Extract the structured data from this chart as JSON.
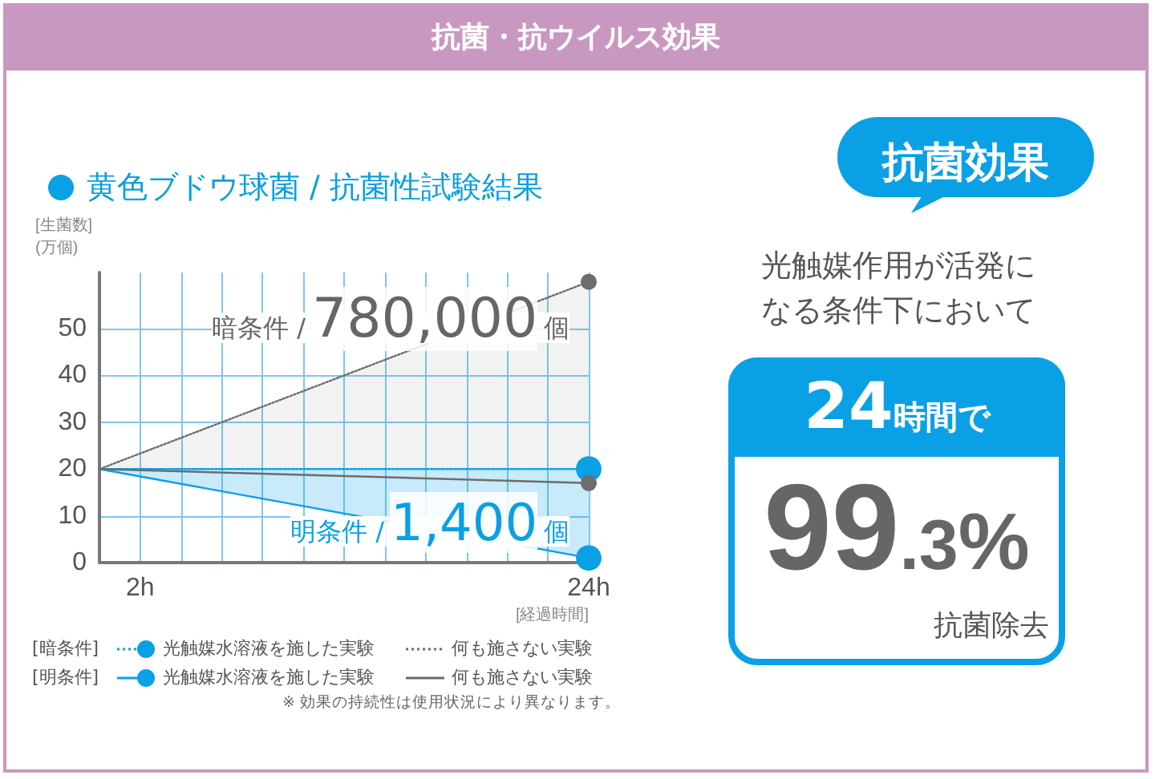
{
  "chart_data": {
    "type": "line",
    "title": "抗菌・抗ウイルス効果",
    "subtitle": "黄色ブドウ球菌 / 抗菌性試験結果",
    "xlabel": "[経過時間]",
    "ylabel": "[生菌数]\n(万個)",
    "x": [
      0,
      24
    ],
    "xlim": [
      0,
      24
    ],
    "xticks": [
      {
        "value": 0,
        "label": null
      },
      {
        "value": 2,
        "label": "2h"
      },
      {
        "value": 4,
        "label": null
      },
      {
        "value": 6,
        "label": null
      },
      {
        "value": 8,
        "label": null
      },
      {
        "value": 10,
        "label": null
      },
      {
        "value": 12,
        "label": null
      },
      {
        "value": 14,
        "label": null
      },
      {
        "value": 16,
        "label": null
      },
      {
        "value": 18,
        "label": null
      },
      {
        "value": 20,
        "label": null
      },
      {
        "value": 22,
        "label": null
      },
      {
        "value": 24,
        "label": "24h"
      }
    ],
    "ylim": [
      0,
      62
    ],
    "yticks": [
      0,
      10,
      20,
      30,
      40,
      50
    ],
    "grid": true,
    "marker": "circle",
    "legend": "bottom",
    "series": [
      {
        "name": "光触媒水溶液を施した実験",
        "color": "#0aa0e6",
        "values": [
          20,
          20
        ],
        "line_style": "dotted"
      },
      {
        "name": "何も施さない実験",
        "color": "#6d6d6d",
        "values": [
          20,
          60
        ],
        "line_style": "dotted",
        "lower": [
          20,
          20
        ],
        "upper": [
          20,
          60
        ]
      },
      {
        "name": "光触媒水溶液を施した実験",
        "color": "#0aa0e6",
        "values": [
          20,
          1
        ],
        "line_style": "solid",
        "lower": [
          20,
          1
        ],
        "upper": [
          20,
          20
        ]
      },
      {
        "name": "何も施さない実験",
        "color": "#6d6d6d",
        "values": [
          20,
          17
        ],
        "line_style": "solid"
      }
    ],
    "annotations": [
      {
        "text": "暗条件 /780,000個",
        "x": 24,
        "y": 60
      },
      {
        "text": "明条件 /1,400個",
        "x": 24,
        "y": 1
      },
      "[暗条件]",
      "[明条件]",
      "※ 効果の持続性は使用状況により異なります。",
      "抗菌効果",
      "光触媒作用が活発になる条件下において",
      "24時間で",
      "99.3%",
      "抗菌除去"
    ]
  }
}
